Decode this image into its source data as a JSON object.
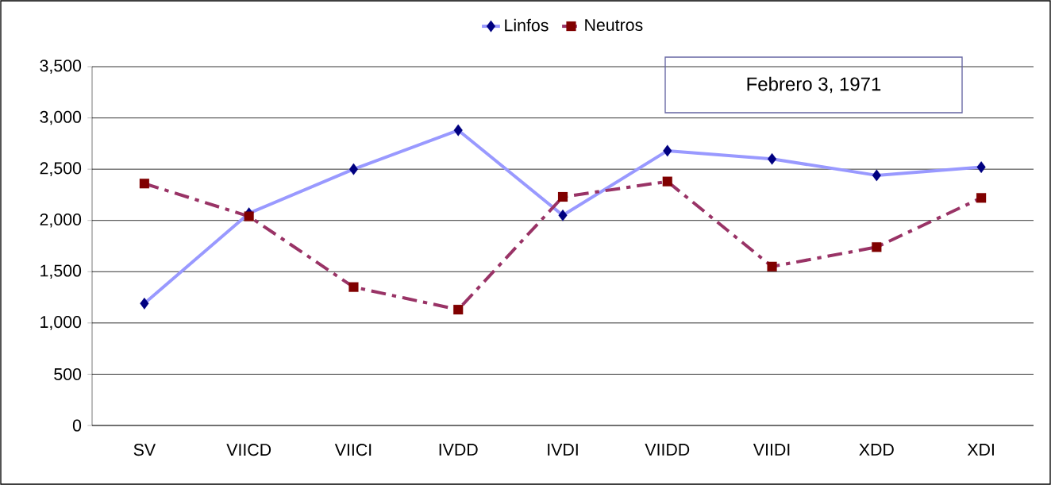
{
  "chart_data": {
    "type": "line",
    "categories": [
      "SV",
      "VIICD",
      "VIICI",
      "IVDD",
      "IVDI",
      "VIIDD",
      "VIIDI",
      "XDD",
      "XDI"
    ],
    "series": [
      {
        "name": "Linfos",
        "color": "#9999ff",
        "marker": "diamond",
        "line_style": "solid",
        "values": [
          1190,
          2070,
          2500,
          2880,
          2050,
          2680,
          2600,
          2440,
          2520
        ]
      },
      {
        "name": "Neutros",
        "color": "#993366",
        "marker": "square",
        "line_style": "dashed",
        "values": [
          2360,
          2040,
          1350,
          1130,
          2230,
          2380,
          1550,
          1740,
          2220
        ]
      }
    ],
    "ylim": [
      0,
      3500
    ],
    "yticks": [
      0,
      500,
      {
        "value": 1000,
        "label": "1,000"
      },
      {
        "value": 1500,
        "label": "1,500"
      },
      {
        "value": 2000,
        "label": "2,000"
      },
      {
        "value": 2500,
        "label": "2,500"
      },
      {
        "value": 3000,
        "label": "3,000"
      },
      {
        "value": 3500,
        "label": "3,500"
      }
    ],
    "grid": "y",
    "legend": "top",
    "annotations": [
      "Febrero 3, 1971"
    ]
  }
}
